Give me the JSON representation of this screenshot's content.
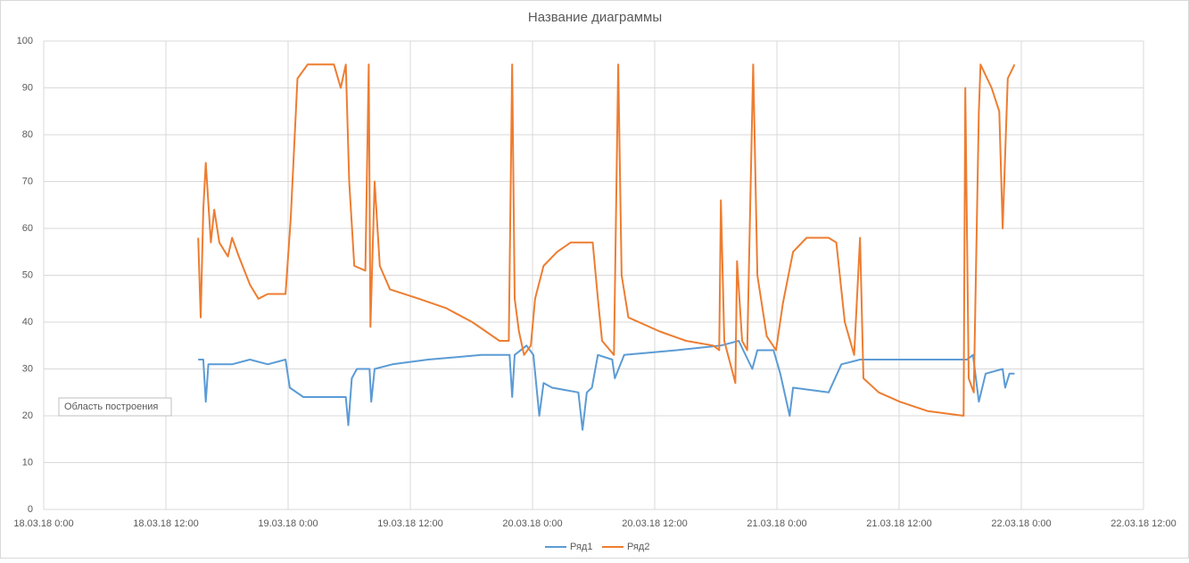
{
  "chart_data": {
    "type": "line",
    "title": "Название диаграммы",
    "tooltip": "Область построения",
    "ylim": [
      0,
      100
    ],
    "yticks": [
      0,
      10,
      20,
      30,
      40,
      50,
      60,
      70,
      80,
      90,
      100
    ],
    "grid": true,
    "legend": "bottom",
    "xlim": [
      "18.03.18 0:00",
      "22.03.18 12:00"
    ],
    "xticks": [
      "18.03.18 0:00",
      "18.03.18 12:00",
      "19.03.18 0:00",
      "19.03.18 12:00",
      "20.03.18 0:00",
      "20.03.18 12:00",
      "21.03.18 0:00",
      "21.03.18 12:00",
      "22.03.18 0:00",
      "22.03.18 12:00"
    ],
    "series": [
      {
        "name": "Ряд1",
        "color": "#5b9bd5",
        "x": [
          "18.03.18 15:10",
          "18.03.18 15:40",
          "18.03.18 15:55",
          "18.03.18 16:10",
          "18.03.18 18:30",
          "18.03.18 20:15",
          "18.03.18 22:00",
          "18.03.18 23:45",
          "19.03.18 0:10",
          "19.03.18 1:30",
          "19.03.18 5:40",
          "19.03.18 5:55",
          "19.03.18 6:15",
          "19.03.18 6:45",
          "19.03.18 8:00",
          "19.03.18 8:10",
          "19.03.18 8:30",
          "19.03.18 10:15",
          "19.03.18 13:45",
          "19.03.18 19:00",
          "19.03.18 21:45",
          "19.03.18 22:00",
          "19.03.18 22:15",
          "19.03.18 23:25",
          "20.03.18 0:05",
          "20.03.18 0:40",
          "20.03.18 1:05",
          "20.03.18 1:55",
          "20.03.18 4:30",
          "20.03.18 4:55",
          "20.03.18 5:20",
          "20.03.18 5:50",
          "20.03.18 6:25",
          "20.03.18 7:50",
          "20.03.18 8:05",
          "20.03.18 9:00",
          "20.03.18 14:10",
          "20.03.18 18:30",
          "20.03.18 20:15",
          "20.03.18 21:35",
          "20.03.18 22:05",
          "20.03.18 23:40",
          "21.03.18 0:20",
          "21.03.18 1:15",
          "21.03.18 1:35",
          "21.03.18 5:05",
          "21.03.18 6:20",
          "21.03.18 8:10",
          "21.03.18 18:40",
          "21.03.18 19:15",
          "21.03.18 19:50",
          "21.03.18 20:30",
          "21.03.18 22:10",
          "21.03.18 22:25",
          "21.03.18 22:50",
          "21.03.18 23:20"
        ],
        "values": [
          32,
          32,
          23,
          31,
          31,
          32,
          31,
          32,
          26,
          24,
          24,
          18,
          28,
          30,
          30,
          23,
          30,
          31,
          32,
          33,
          33,
          24,
          33,
          35,
          33,
          20,
          27,
          26,
          25,
          17,
          25,
          26,
          33,
          32,
          28,
          33,
          34,
          35,
          36,
          30,
          34,
          34,
          29,
          20,
          26,
          25,
          31,
          32,
          32,
          33,
          23,
          29,
          30,
          26,
          29,
          29
        ]
      },
      {
        "name": "Ряд2",
        "color": "#ed7d31",
        "x": [
          "18.03.18 15:10",
          "18.03.18 15:25",
          "18.03.18 15:40",
          "18.03.18 15:55",
          "18.03.18 16:25",
          "18.03.18 16:45",
          "18.03.18 17:15",
          "18.03.18 18:05",
          "18.03.18 18:30",
          "18.03.18 19:10",
          "18.03.18 20:15",
          "18.03.18 21:05",
          "18.03.18 22:00",
          "18.03.18 23:45",
          "19.03.18 0:15",
          "19.03.18 0:55",
          "19.03.18 1:55",
          "19.03.18 4:30",
          "19.03.18 5:10",
          "19.03.18 5:40",
          "19.03.18 6:00",
          "19.03.18 6:30",
          "19.03.18 7:35",
          "19.03.18 7:55",
          "19.03.18 8:05",
          "19.03.18 8:30",
          "19.03.18 9:00",
          "19.03.18 10:00",
          "19.03.18 12:50",
          "19.03.18 15:30",
          "19.03.18 18:05",
          "19.03.18 20:45",
          "19.03.18 21:40",
          "19.03.18 22:00",
          "19.03.18 22:15",
          "19.03.18 22:40",
          "19.03.18 23:10",
          "19.03.18 23:50",
          "20.03.18 0:15",
          "20.03.18 1:05",
          "20.03.18 2:25",
          "20.03.18 3:45",
          "20.03.18 5:55",
          "20.03.18 6:25",
          "20.03.18 6:50",
          "20.03.18 8:00",
          "20.03.18 8:25",
          "20.03.18 8:45",
          "20.03.18 9:25",
          "20.03.18 12:30",
          "20.03.18 15:05",
          "20.03.18 17:45",
          "20.03.18 18:20",
          "20.03.18 18:30",
          "20.03.18 18:50",
          "20.03.18 19:55",
          "20.03.18 20:05",
          "20.03.18 20:35",
          "20.03.18 21:05",
          "20.03.18 21:40",
          "20.03.18 22:05",
          "20.03.18 23:00",
          "20.03.18 23:55",
          "21.03.18 0:35",
          "21.03.18 1:35",
          "21.03.18 2:55",
          "21.03.18 5:05",
          "21.03.18 5:50",
          "21.03.18 6:40",
          "21.03.18 7:35",
          "21.03.18 8:10",
          "21.03.18 8:30",
          "21.03.18 10:00",
          "21.03.18 12:05",
          "21.03.18 14:50",
          "21.03.18 18:20",
          "21.03.18 18:30",
          "21.03.18 18:50",
          "21.03.18 19:20",
          "21.03.18 19:50",
          "21.03.18 20:00",
          "21.03.18 21:05",
          "21.03.18 21:50",
          "21.03.18 22:10",
          "21.03.18 22:40",
          "21.03.18 23:20"
        ],
        "values": [
          58,
          41,
          64,
          74,
          57,
          64,
          57,
          54,
          58,
          54,
          48,
          45,
          46,
          46,
          62,
          92,
          95,
          95,
          90,
          95,
          70,
          52,
          51,
          95,
          39,
          70,
          52,
          47,
          45,
          43,
          40,
          36,
          36,
          95,
          45,
          38,
          33,
          35,
          45,
          52,
          55,
          57,
          57,
          45,
          36,
          33,
          95,
          50,
          41,
          38,
          36,
          35,
          34,
          66,
          36,
          27,
          53,
          36,
          34,
          95,
          50,
          37,
          34,
          44,
          55,
          58,
          58,
          57,
          40,
          33,
          58,
          28,
          25,
          23,
          21,
          20,
          90,
          28,
          25,
          85,
          95,
          90,
          85,
          60,
          92,
          95
        ]
      }
    ]
  }
}
